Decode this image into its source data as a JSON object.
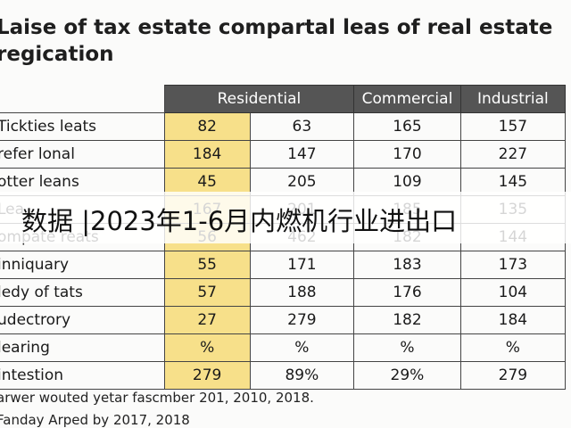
{
  "header": {
    "title": "Laise of tax estate compartal leas of real estate regication"
  },
  "table": {
    "columns": [
      "Residential",
      "Commercial",
      "Industrial"
    ],
    "rows": [
      [
        "Tickties leats",
        "82",
        "63",
        "165",
        "157"
      ],
      [
        "refer lonal",
        "184",
        "147",
        "170",
        "227"
      ],
      [
        "otter leans",
        "45",
        "205",
        "109",
        "145"
      ],
      [
        "Lea",
        "167",
        "201",
        "185",
        "135"
      ],
      [
        "ompate reats",
        "56",
        "462",
        "182",
        "144"
      ],
      [
        "inniquary",
        "55",
        "171",
        "183",
        "173"
      ],
      [
        "ledy of tats",
        "57",
        "188",
        "176",
        "104"
      ],
      [
        "udectrory",
        "27",
        "279",
        "182",
        "184"
      ],
      [
        "learing",
        "%",
        "%",
        "%",
        "%"
      ],
      [
        "intestion",
        "279",
        "89%",
        "29%",
        "279"
      ]
    ]
  },
  "footer": {
    "notes": [
      "arwer wouted yetar fascmber 201, 2010, 2018.",
      "Fanday Arped by 2017, 2018"
    ]
  },
  "banner": {
    "text": "数据 |2023年1-6月内燃机行业进出口"
  }
}
